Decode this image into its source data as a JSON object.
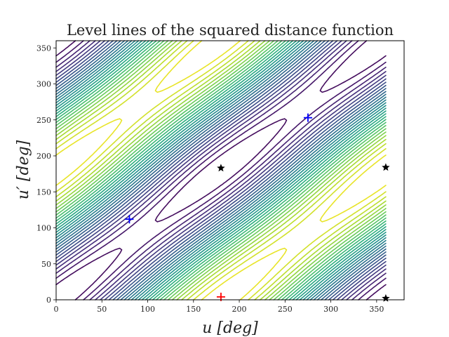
{
  "chart_data": {
    "type": "contour",
    "title": "Level lines of the squared distance function",
    "xlabel": "u [deg]",
    "ylabel": "u′ [deg]",
    "xlim": [
      0,
      380
    ],
    "ylim": [
      0,
      360
    ],
    "xticks": [
      0,
      50,
      100,
      150,
      200,
      250,
      300,
      350
    ],
    "yticks": [
      0,
      50,
      100,
      150,
      200,
      250,
      300,
      350
    ],
    "xtick_labels": [
      "0",
      "50",
      "100",
      "150",
      "200",
      "250",
      "300",
      "350"
    ],
    "ytick_labels": [
      "0",
      "50",
      "100",
      "150",
      "200",
      "250",
      "300",
      "350"
    ],
    "grid": false,
    "colormap": "viridis",
    "contour_x_range": [
      0,
      360
    ],
    "contour_y_range": [
      0,
      360
    ],
    "minima": [
      {
        "x": 80,
        "y": 112,
        "color": "#0000ff",
        "marker": "plus"
      },
      {
        "x": 275,
        "y": 253,
        "color": "#0000ff",
        "marker": "plus"
      }
    ],
    "maxima": [
      {
        "x": 180,
        "y": 4,
        "color": "#ff0000",
        "marker": "plus"
      }
    ],
    "saddles": [
      {
        "x": 180,
        "y": 183,
        "color": "#000000",
        "marker": "star"
      },
      {
        "x": 360,
        "y": 184,
        "color": "#000000",
        "marker": "star"
      },
      {
        "x": 360,
        "y": 2,
        "color": "#000000",
        "marker": "star"
      }
    ]
  }
}
